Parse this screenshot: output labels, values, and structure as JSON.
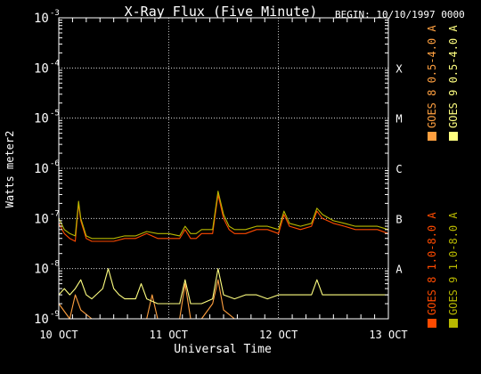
{
  "chart_data": {
    "type": "line",
    "title": "X-Ray Flux (Five Minute)",
    "begin_label": "BEGIN: 10/10/1997 0000",
    "xlabel": "Universal Time",
    "ylabel": "Watts meter2",
    "x_ticks": [
      "10 OCT",
      "11 OCT",
      "12 OCT",
      "13 OCT"
    ],
    "x_range_days": [
      0,
      3
    ],
    "y_scale": "log",
    "ylim": [
      "1e-9",
      "1e-3"
    ],
    "y_ticks": [
      {
        "base": "10",
        "exp": "-9"
      },
      {
        "base": "10",
        "exp": "-8"
      },
      {
        "base": "10",
        "exp": "-7"
      },
      {
        "base": "10",
        "exp": "-6"
      },
      {
        "base": "10",
        "exp": "-5"
      },
      {
        "base": "10",
        "exp": "-4"
      },
      {
        "base": "10",
        "exp": "-3"
      }
    ],
    "flare_classes": [
      "A",
      "B",
      "C",
      "M",
      "X"
    ],
    "grid": "dotted at each decade and day boundary",
    "legend_placement": "right, rotated",
    "series": [
      {
        "name": "GOES 8 1.0-8.0 A",
        "color": "#ff4a00",
        "x": [
          0.0,
          0.05,
          0.1,
          0.15,
          0.18,
          0.2,
          0.25,
          0.3,
          0.4,
          0.5,
          0.6,
          0.7,
          0.8,
          0.9,
          1.0,
          1.1,
          1.15,
          1.2,
          1.25,
          1.3,
          1.4,
          1.45,
          1.5,
          1.55,
          1.6,
          1.7,
          1.8,
          1.9,
          2.0,
          2.05,
          2.1,
          2.2,
          2.3,
          2.35,
          2.4,
          2.5,
          2.6,
          2.7,
          2.8,
          2.9,
          3.0
        ],
        "y": [
          "8e-8",
          "5e-8",
          "4e-8",
          "3.5e-8",
          "2e-7",
          "9e-8",
          "4e-8",
          "3.5e-8",
          "3.5e-8",
          "3.5e-8",
          "4e-8",
          "4e-8",
          "5e-8",
          "4e-8",
          "4e-8",
          "4e-8",
          "6e-8",
          "4e-8",
          "4e-8",
          "5e-8",
          "5e-8",
          "3e-7",
          "1e-7",
          "6e-8",
          "5e-8",
          "5e-8",
          "6e-8",
          "6e-8",
          "5e-8",
          "1.2e-7",
          "7e-8",
          "6e-8",
          "7e-8",
          "1.4e-7",
          "1e-7",
          "8e-8",
          "7e-8",
          "6e-8",
          "6e-8",
          "6e-8",
          "5e-8"
        ]
      },
      {
        "name": "GOES 8 0.5-4.0 A",
        "color": "#ffa040",
        "x": [
          0.0,
          0.1,
          0.15,
          0.2,
          0.3,
          0.4,
          0.5,
          0.6,
          0.7,
          0.8,
          0.85,
          0.9,
          1.0,
          1.1,
          1.15,
          1.2,
          1.3,
          1.4,
          1.45,
          1.5,
          1.6,
          1.7,
          1.8,
          1.9,
          2.0,
          2.1,
          2.2,
          2.3,
          2.4,
          2.5,
          2.6,
          2.7,
          2.8,
          2.9,
          3.0
        ],
        "y": [
          "2e-9",
          "1e-9",
          "3e-9",
          "1.5e-9",
          "1e-9",
          "1e-9",
          "1e-9",
          "1e-9",
          "1e-9",
          "1e-9",
          "3e-9",
          "1e-9",
          "1e-9",
          "1e-9",
          "5e-9",
          "1e-9",
          "1e-9",
          "2e-9",
          "6e-9",
          "1.5e-9",
          "1e-9",
          "1e-9",
          "1e-9",
          "1e-9",
          "1e-9",
          "1e-9",
          "1e-9",
          "1e-9",
          "1e-9",
          "1e-9",
          "1e-9",
          "1e-9",
          "1e-9",
          "1e-9",
          "1e-9"
        ]
      },
      {
        "name": "GOES 9 1.0-8.0 A",
        "color": "#b8b800",
        "x": [
          0.0,
          0.05,
          0.1,
          0.15,
          0.18,
          0.2,
          0.25,
          0.3,
          0.4,
          0.5,
          0.6,
          0.7,
          0.8,
          0.9,
          1.0,
          1.1,
          1.15,
          1.2,
          1.25,
          1.3,
          1.4,
          1.45,
          1.5,
          1.55,
          1.6,
          1.7,
          1.8,
          1.9,
          2.0,
          2.05,
          2.1,
          2.2,
          2.3,
          2.35,
          2.4,
          2.5,
          2.6,
          2.7,
          2.8,
          2.9,
          3.0
        ],
        "y": [
          "1e-7",
          "6e-8",
          "5e-8",
          "4.5e-8",
          "2.2e-7",
          "1e-7",
          "4.5e-8",
          "4e-8",
          "4e-8",
          "4e-8",
          "4.5e-8",
          "4.5e-8",
          "5.5e-8",
          "5e-8",
          "5e-8",
          "4.5e-8",
          "7e-8",
          "5e-8",
          "5e-8",
          "6e-8",
          "6e-8",
          "3.5e-7",
          "1.2e-7",
          "7e-8",
          "6e-8",
          "6e-8",
          "7e-8",
          "7e-8",
          "6e-8",
          "1.4e-7",
          "8e-8",
          "7e-8",
          "8e-8",
          "1.6e-7",
          "1.2e-7",
          "9e-8",
          "8e-8",
          "7e-8",
          "7e-8",
          "7e-8",
          "6e-8"
        ]
      },
      {
        "name": "GOES 9 0.5-4.0 A",
        "color": "#ffff80",
        "x": [
          0.0,
          0.05,
          0.1,
          0.15,
          0.2,
          0.25,
          0.3,
          0.4,
          0.45,
          0.5,
          0.55,
          0.6,
          0.7,
          0.75,
          0.8,
          0.9,
          1.0,
          1.1,
          1.15,
          1.2,
          1.3,
          1.4,
          1.45,
          1.5,
          1.6,
          1.7,
          1.8,
          1.9,
          2.0,
          2.1,
          2.2,
          2.3,
          2.35,
          2.4,
          2.5,
          2.6,
          2.7,
          2.8,
          2.9,
          3.0
        ],
        "y": [
          "3e-9",
          "4e-9",
          "3e-9",
          "4e-9",
          "6e-9",
          "3e-9",
          "2.5e-9",
          "4e-9",
          "1e-8",
          "4e-9",
          "3e-9",
          "2.5e-9",
          "2.5e-9",
          "5e-9",
          "2.5e-9",
          "2e-9",
          "2e-9",
          "2e-9",
          "6e-9",
          "2e-9",
          "2e-9",
          "2.5e-9",
          "1e-8",
          "3e-9",
          "2.5e-9",
          "3e-9",
          "3e-9",
          "2.5e-9",
          "3e-9",
          "3e-9",
          "3e-9",
          "3e-9",
          "6e-9",
          "3e-9",
          "3e-9",
          "3e-9",
          "3e-9",
          "3e-9",
          "3e-9",
          "3e-9"
        ]
      }
    ]
  }
}
